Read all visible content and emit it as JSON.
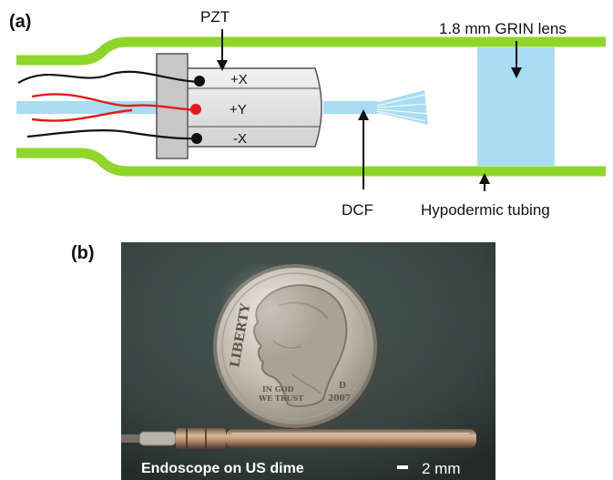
{
  "panel_a": {
    "label": "(a)",
    "callouts": {
      "pzt": "PZT",
      "grin_lens": "1.8 mm GRIN lens",
      "dcf": "DCF",
      "hypodermic_tubing": "Hypodermic tubing"
    },
    "electrode_labels": [
      "+X",
      "+Y",
      "-X"
    ]
  },
  "panel_b": {
    "label": "(b)",
    "caption": "Endoscope on US dime",
    "scale_bar": "2 mm",
    "coin_text": {
      "liberty": "LIBERTY",
      "motto_line1": "IN GOD",
      "motto_line2": "WE TRUST",
      "year": "2007",
      "mint_mark": "D"
    }
  },
  "colors": {
    "tubing": "#8ed62a",
    "fiber": "#a9dcf2",
    "grin_lens": "#a9dcf2",
    "pzt_body": "#e3e3e3",
    "wire_red": "#e31b1b",
    "wire_black": "#111111",
    "photo_background": "#3c4a48",
    "coin": "#c7c1b5"
  }
}
